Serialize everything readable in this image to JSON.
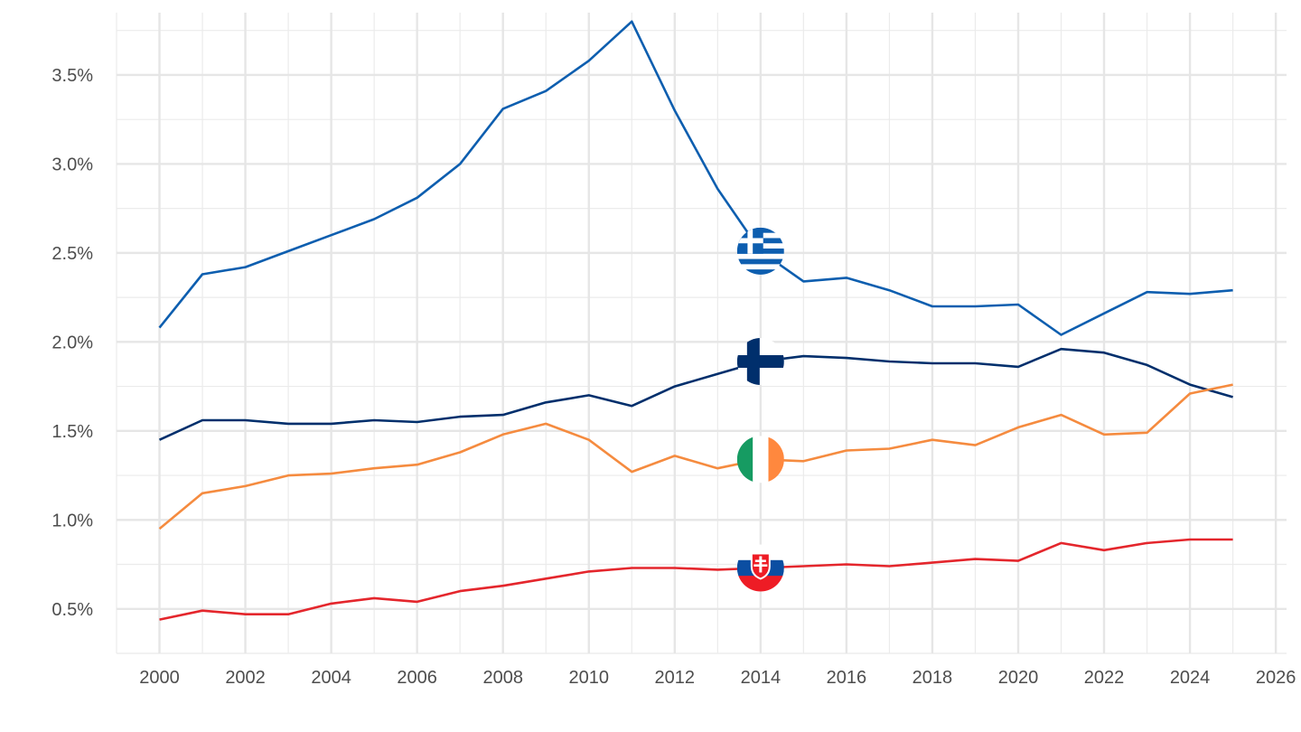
{
  "chart_data": {
    "type": "line",
    "title": "",
    "xlabel": "",
    "ylabel": "",
    "xlim": [
      1999,
      2026.25
    ],
    "ylim": [
      0.25,
      3.85
    ],
    "x_ticks": [
      2000,
      2002,
      2004,
      2006,
      2008,
      2010,
      2012,
      2014,
      2016,
      2018,
      2020,
      2022,
      2024,
      2026
    ],
    "y_ticks": [
      0.5,
      1.0,
      1.5,
      2.0,
      2.5,
      3.0,
      3.5
    ],
    "y_tick_labels": [
      "0.5%",
      "1.0%",
      "1.5%",
      "2.0%",
      "2.5%",
      "3.0%",
      "3.5%"
    ],
    "grid": true,
    "legend": "flag markers at 2014",
    "x": [
      2000,
      2001,
      2002,
      2003,
      2004,
      2005,
      2006,
      2007,
      2008,
      2009,
      2010,
      2011,
      2012,
      2013,
      2014,
      2015,
      2016,
      2017,
      2018,
      2019,
      2020,
      2021,
      2022,
      2023,
      2024,
      2025
    ],
    "series": [
      {
        "flag": "greece-flag",
        "color": "#0d5eaf",
        "values": [
          2.08,
          2.38,
          2.42,
          2.51,
          2.6,
          2.69,
          2.81,
          3.0,
          3.31,
          3.41,
          3.58,
          3.8,
          3.3,
          2.86,
          2.51,
          2.34,
          2.36,
          2.29,
          2.2,
          2.2,
          2.21,
          2.04,
          2.16,
          2.28,
          2.27,
          2.29
        ]
      },
      {
        "flag": "finland-flag",
        "color": "#002f6c",
        "values": [
          1.45,
          1.56,
          1.56,
          1.54,
          1.54,
          1.56,
          1.55,
          1.58,
          1.59,
          1.66,
          1.7,
          1.64,
          1.75,
          1.82,
          1.89,
          1.92,
          1.91,
          1.89,
          1.88,
          1.88,
          1.86,
          1.96,
          1.94,
          1.87,
          1.76,
          1.69
        ]
      },
      {
        "flag": "ireland-flag",
        "color": "#f58b3f",
        "values": [
          0.95,
          1.15,
          1.19,
          1.25,
          1.26,
          1.29,
          1.31,
          1.38,
          1.48,
          1.54,
          1.45,
          1.27,
          1.36,
          1.29,
          1.34,
          1.33,
          1.39,
          1.4,
          1.45,
          1.42,
          1.52,
          1.59,
          1.48,
          1.49,
          1.71,
          1.76
        ]
      },
      {
        "flag": "slovakia-flag",
        "color": "#e4262c",
        "values": [
          0.44,
          0.49,
          0.47,
          0.47,
          0.53,
          0.56,
          0.54,
          0.6,
          0.63,
          0.67,
          0.71,
          0.73,
          0.73,
          0.72,
          0.73,
          0.74,
          0.75,
          0.74,
          0.76,
          0.78,
          0.77,
          0.87,
          0.83,
          0.87,
          0.89,
          0.89
        ]
      }
    ],
    "flag_marker_x": 2014
  }
}
